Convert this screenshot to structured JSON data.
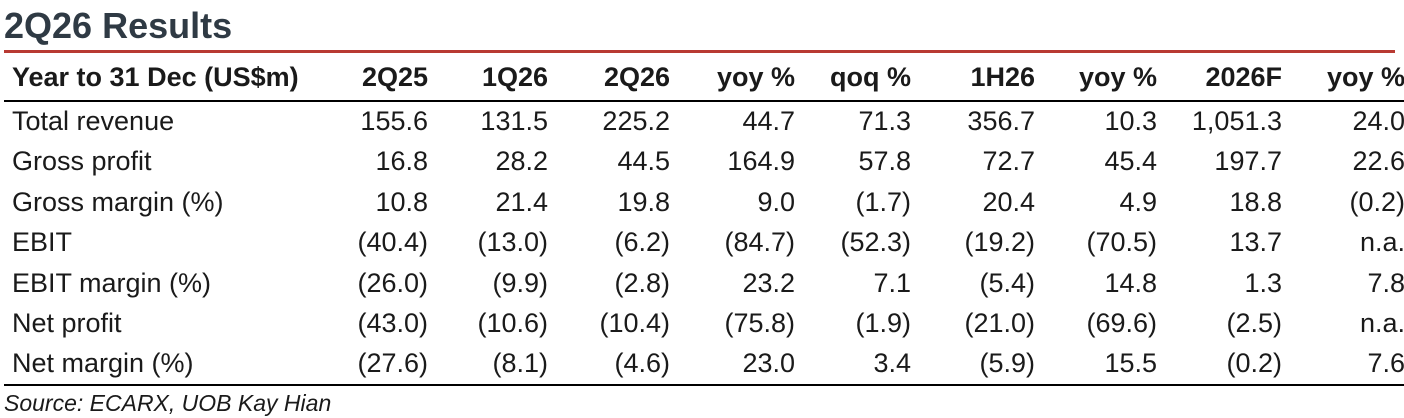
{
  "title": "2Q26 Results",
  "accent_color": "#b83a32",
  "table": {
    "headers": [
      "Year to 31 Dec (US$m)",
      "2Q25",
      "1Q26",
      "2Q26",
      "yoy %",
      "qoq %",
      "1H26",
      "yoy %",
      "2026F",
      "yoy %"
    ],
    "rows": [
      [
        "Total revenue",
        "155.6",
        "131.5",
        "225.2",
        "44.7",
        "71.3",
        "356.7",
        "10.3",
        "1,051.3",
        "24.0"
      ],
      [
        "Gross profit",
        "16.8",
        "28.2",
        "44.5",
        "164.9",
        "57.8",
        "72.7",
        "45.4",
        "197.7",
        "22.6"
      ],
      [
        "Gross margin (%)",
        "10.8",
        "21.4",
        "19.8",
        "9.0",
        "(1.7)",
        "20.4",
        "4.9",
        "18.8",
        "(0.2)"
      ],
      [
        "EBIT",
        "(40.4)",
        "(13.0)",
        "(6.2)",
        "(84.7)",
        "(52.3)",
        "(19.2)",
        "(70.5)",
        "13.7",
        "n.a."
      ],
      [
        "EBIT margin (%)",
        "(26.0)",
        "(9.9)",
        "(2.8)",
        "23.2",
        "7.1",
        "(5.4)",
        "14.8",
        "1.3",
        "7.8"
      ],
      [
        "Net profit",
        "(43.0)",
        "(10.6)",
        "(10.4)",
        "(75.8)",
        "(1.9)",
        "(21.0)",
        "(69.6)",
        "(2.5)",
        "n.a."
      ],
      [
        "Net margin (%)",
        "(27.6)",
        "(8.1)",
        "(4.6)",
        "23.0",
        "3.4",
        "(5.9)",
        "15.5",
        "(0.2)",
        "7.6"
      ]
    ]
  },
  "source": "Source: ECARX, UOB Kay Hian"
}
